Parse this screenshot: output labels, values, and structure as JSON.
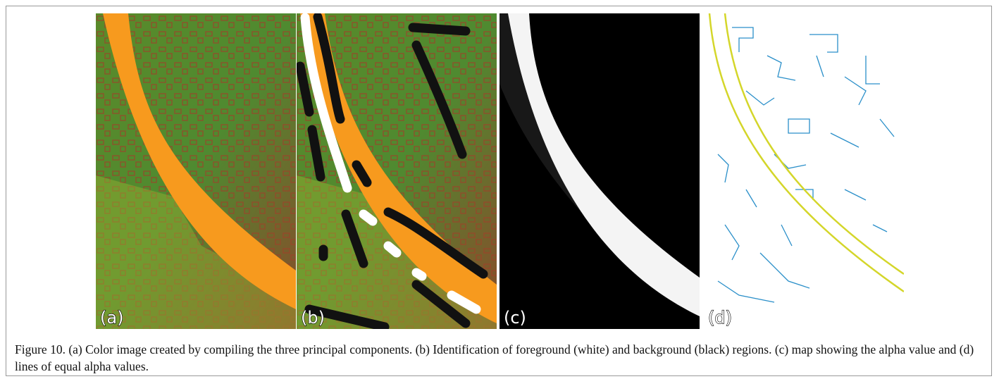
{
  "panels": [
    {
      "label": "(a)"
    },
    {
      "label": "(b)"
    },
    {
      "label": "(c)"
    },
    {
      "label": "(d)"
    }
  ],
  "caption": "Figure 10. (a) Color image created by compiling the three principal components. (b) Identification  of foreground (white) and background (black) regions. (c) map showing the alpha value and (d) lines of equal alpha values."
}
